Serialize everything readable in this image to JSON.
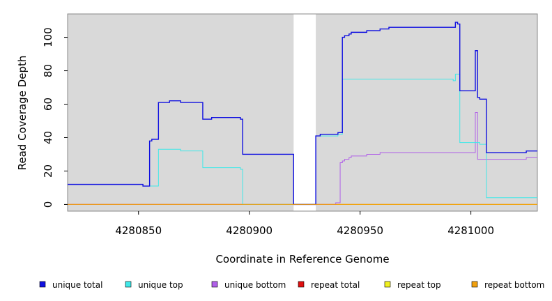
{
  "chart_data": {
    "type": "line",
    "title": "",
    "xlabel": "Coordinate in Reference Genome",
    "ylabel": "Read Coverage Depth",
    "xlim": [
      4280818,
      4281030
    ],
    "ylim": [
      -4,
      114
    ],
    "xticks": [
      4280850,
      4280900,
      4280950,
      4281000
    ],
    "xtick_labels": [
      "4280850",
      "4280900",
      "4280950",
      "4281000"
    ],
    "yticks": [
      0,
      20,
      40,
      60,
      80,
      100
    ],
    "ytick_labels": [
      "0",
      "20",
      "40",
      "60",
      "80",
      "100"
    ],
    "gap": [
      4280920,
      4280930
    ],
    "background": "#d9d9d9",
    "grid": false,
    "legend_position": "bottom",
    "series": [
      {
        "name": "unique total",
        "color": "#1010e0",
        "x": [
          4280818,
          4280852,
          4280852,
          4280855,
          4280855,
          4280856,
          4280856,
          4280859,
          4280859,
          4280864,
          4280864,
          4280869,
          4280869,
          4280879,
          4280879,
          4280883,
          4280883,
          4280896,
          4280896,
          4280897,
          4280897,
          4280920,
          4280920,
          4280930,
          4280930,
          4280932,
          4280932,
          4280940,
          4280940,
          4280942,
          4280942,
          4280943,
          4280943,
          4280945,
          4280945,
          4280946,
          4280946,
          4280953,
          4280953,
          4280959,
          4280959,
          4280963,
          4280963,
          4280993,
          4280993,
          4280994,
          4280994,
          4280995,
          4280995,
          4281002,
          4281002,
          4281003,
          4281003,
          4281004,
          4281004,
          4281007,
          4281007,
          4281025,
          4281025,
          4281030
        ],
        "y": [
          12,
          12,
          11,
          11,
          38,
          38,
          39,
          39,
          61,
          61,
          62,
          62,
          61,
          61,
          51,
          51,
          52,
          52,
          51,
          51,
          30,
          30,
          0,
          0,
          41,
          41,
          42,
          42,
          43,
          43,
          100,
          100,
          101,
          101,
          102,
          102,
          103,
          103,
          104,
          104,
          105,
          105,
          106,
          106,
          109,
          109,
          108,
          108,
          68,
          68,
          92,
          92,
          64,
          64,
          63,
          63,
          31,
          31,
          32,
          32
        ]
      },
      {
        "name": "unique top",
        "color": "#40e8e8",
        "x": [
          4280818,
          4280852,
          4280852,
          4280859,
          4280859,
          4280869,
          4280869,
          4280879,
          4280879,
          4280896,
          4280896,
          4280897,
          4280897,
          4280920,
          4280920,
          4280930,
          4280930,
          4280940,
          4280940,
          4280942,
          4280942,
          4280992,
          4280992,
          4280993,
          4280993,
          4280995,
          4280995,
          4281004,
          4281004,
          4281007,
          4281007,
          4281030
        ],
        "y": [
          12,
          12,
          11,
          11,
          33,
          33,
          32,
          32,
          22,
          22,
          21,
          21,
          0,
          0,
          0,
          0,
          41,
          41,
          42,
          42,
          75,
          75,
          74,
          74,
          78,
          78,
          37,
          37,
          36,
          36,
          4,
          4
        ]
      },
      {
        "name": "unique bottom",
        "color": "#b060e8",
        "x": [
          4280818,
          4280939,
          4280939,
          4280941,
          4280941,
          4280942,
          4280942,
          4280943,
          4280943,
          4280945,
          4280945,
          4280946,
          4280946,
          4280953,
          4280953,
          4280959,
          4280959,
          4280963,
          4280963,
          4281002,
          4281002,
          4281003,
          4281003,
          4281025,
          4281025,
          4281030
        ],
        "x_extra_note": "",
        "y": [
          0,
          0,
          1,
          1,
          25,
          25,
          26,
          26,
          27,
          27,
          28,
          28,
          29,
          29,
          30,
          30,
          31,
          31,
          31,
          31,
          55,
          55,
          27,
          27,
          28,
          28
        ]
      },
      {
        "name": "repeat total",
        "color": "#e01010",
        "x": [
          4280818,
          4281030
        ],
        "y": [
          0,
          0
        ]
      },
      {
        "name": "repeat top",
        "color": "#f0f020",
        "x": [
          4280818,
          4281030
        ],
        "y": [
          0,
          0
        ]
      },
      {
        "name": "repeat bottom",
        "color": "#f0a010",
        "x": [
          4280818,
          4281030
        ],
        "y": [
          0,
          0
        ]
      }
    ]
  },
  "legend": [
    {
      "label": "unique total",
      "color": "#1010e0"
    },
    {
      "label": "unique top",
      "color": "#40e8e8"
    },
    {
      "label": "unique bottom",
      "color": "#b060e8"
    },
    {
      "label": "repeat total",
      "color": "#e01010"
    },
    {
      "label": "repeat top",
      "color": "#f0f020"
    },
    {
      "label": "repeat bottom",
      "color": "#f0a010"
    }
  ]
}
